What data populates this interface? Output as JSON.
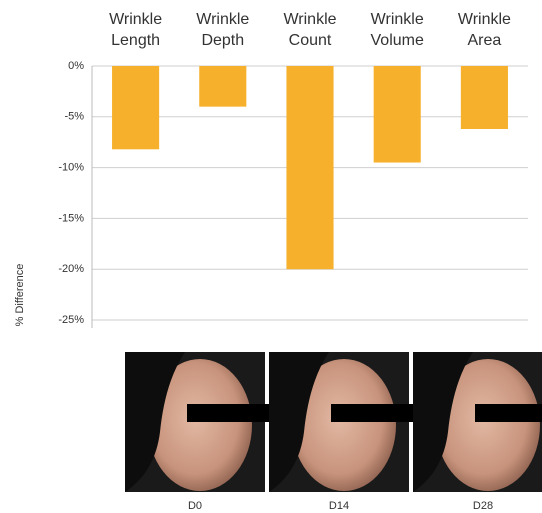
{
  "chart_data": {
    "type": "bar",
    "categories": [
      "Wrinkle Length",
      "Wrinkle Depth",
      "Wrinkle Count",
      "Wrinkle Volume",
      "Wrinkle Area"
    ],
    "values": [
      -8.2,
      -4,
      -20,
      -9.5,
      -6.2
    ],
    "color": "#f6b02b",
    "y_label": "% Difference",
    "ylim": [
      -25,
      0
    ],
    "yticks": [
      {
        "value": 0,
        "label": "0%"
      },
      {
        "value": -5,
        "label": "-5%"
      },
      {
        "value": -10,
        "label": "-10%"
      },
      {
        "value": -15,
        "label": "-15%"
      },
      {
        "value": -20,
        "label": "-20%"
      },
      {
        "value": -25,
        "label": "-25%"
      }
    ],
    "grid": true
  },
  "photos": [
    {
      "label": "D0"
    },
    {
      "label": "D14"
    },
    {
      "label": "D28"
    }
  ]
}
